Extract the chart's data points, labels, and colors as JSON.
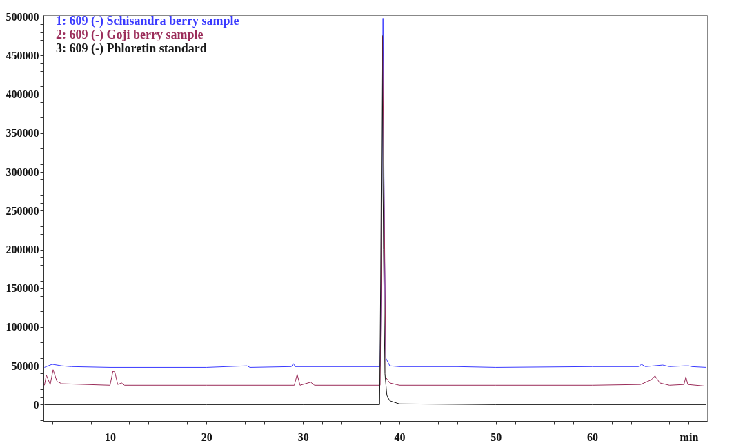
{
  "chart_data": {
    "type": "line",
    "legend": "top left",
    "grid": false,
    "xlim": [
      3.1,
      71.9
    ],
    "xticks": [
      {
        "value": 4,
        "label": null
      },
      {
        "value": 6,
        "label": null
      },
      {
        "value": 8,
        "label": null
      },
      10,
      {
        "value": 12,
        "label": null
      },
      {
        "value": 14,
        "label": null
      },
      {
        "value": 16,
        "label": null
      },
      {
        "value": 18,
        "label": null
      },
      20,
      {
        "value": 22,
        "label": null
      },
      {
        "value": 24,
        "label": null
      },
      {
        "value": 26,
        "label": null
      },
      {
        "value": 28,
        "label": null
      },
      30,
      {
        "value": 32,
        "label": null
      },
      {
        "value": 34,
        "label": null
      },
      {
        "value": 36,
        "label": null
      },
      {
        "value": 38,
        "label": null
      },
      40,
      {
        "value": 42,
        "label": null
      },
      {
        "value": 44,
        "label": null
      },
      {
        "value": 46,
        "label": null
      },
      {
        "value": 48,
        "label": null
      },
      50,
      {
        "value": 52,
        "label": null
      },
      {
        "value": 54,
        "label": null
      },
      {
        "value": 56,
        "label": null
      },
      {
        "value": 58,
        "label": null
      },
      60,
      {
        "value": 62,
        "label": null
      },
      {
        "value": 64,
        "label": null
      },
      {
        "value": 66,
        "label": null
      },
      {
        "value": 68,
        "label": null
      },
      {
        "value": 70,
        "label": "min"
      }
    ],
    "ylim": [
      -21000,
      502000
    ],
    "yticks": [
      {
        "value": -20000,
        "label": null
      },
      {
        "value": -10000,
        "label": null
      },
      0,
      {
        "value": 10000,
        "label": null
      },
      {
        "value": 20000,
        "label": null
      },
      {
        "value": 30000,
        "label": null
      },
      {
        "value": 40000,
        "label": null
      },
      50000,
      {
        "value": 60000,
        "label": null
      },
      {
        "value": 70000,
        "label": null
      },
      {
        "value": 80000,
        "label": null
      },
      {
        "value": 90000,
        "label": null
      },
      100000,
      {
        "value": 110000,
        "label": null
      },
      {
        "value": 120000,
        "label": null
      },
      {
        "value": 130000,
        "label": null
      },
      {
        "value": 140000,
        "label": null
      },
      150000,
      {
        "value": 160000,
        "label": null
      },
      {
        "value": 170000,
        "label": null
      },
      {
        "value": 180000,
        "label": null
      },
      {
        "value": 190000,
        "label": null
      },
      200000,
      {
        "value": 210000,
        "label": null
      },
      {
        "value": 220000,
        "label": null
      },
      {
        "value": 230000,
        "label": null
      },
      {
        "value": 240000,
        "label": null
      },
      250000,
      {
        "value": 260000,
        "label": null
      },
      {
        "value": 270000,
        "label": null
      },
      {
        "value": 280000,
        "label": null
      },
      {
        "value": 290000,
        "label": null
      },
      300000,
      {
        "value": 310000,
        "label": null
      },
      {
        "value": 320000,
        "label": null
      },
      {
        "value": 330000,
        "label": null
      },
      {
        "value": 340000,
        "label": null
      },
      350000,
      {
        "value": 360000,
        "label": null
      },
      {
        "value": 370000,
        "label": null
      },
      {
        "value": 380000,
        "label": null
      },
      {
        "value": 390000,
        "label": null
      },
      400000,
      {
        "value": 410000,
        "label": null
      },
      {
        "value": 420000,
        "label": null
      },
      {
        "value": 430000,
        "label": null
      },
      {
        "value": 440000,
        "label": null
      },
      450000,
      {
        "value": 460000,
        "label": null
      },
      {
        "value": 470000,
        "label": null
      },
      {
        "value": 480000,
        "label": null
      },
      {
        "value": 490000,
        "label": null
      },
      500000
    ],
    "series": [
      {
        "name": "1: 609 (-) Schisandra berry sample",
        "color": "#3a3aff",
        "x": [
          3.2,
          3.6,
          4,
          5,
          6,
          10,
          20,
          24.2,
          24.5,
          28.8,
          29,
          29.2,
          31,
          38,
          38.15,
          38.3,
          38.45,
          38.6,
          39,
          40,
          46,
          50,
          60,
          64.8,
          65.1,
          65.5,
          67.3,
          68,
          69.6,
          70,
          70.3,
          71.8
        ],
        "values": [
          48000,
          50000,
          52000,
          50000,
          49000,
          48000,
          48000,
          50000,
          48000,
          49000,
          53000,
          49000,
          49000,
          49000,
          200000,
          498000,
          200000,
          60000,
          50000,
          49000,
          49000,
          48000,
          49000,
          49000,
          52000,
          49000,
          51000,
          49000,
          50000,
          50000,
          49000,
          48000
        ]
      },
      {
        "name": "2: 609 (-) Goji berry sample",
        "color": "#9b2d5a",
        "x": [
          3.2,
          3.4,
          3.8,
          4.1,
          4.5,
          5,
          10,
          10.3,
          10.5,
          10.8,
          11.2,
          11.5,
          20,
          29.1,
          29.4,
          29.7,
          30.8,
          31.2,
          38,
          38.1,
          38.25,
          38.6,
          39,
          40,
          50,
          60,
          65,
          66.1,
          66.5,
          67,
          68,
          69.5,
          69.7,
          69.9,
          71.6
        ],
        "values": [
          25000,
          38000,
          26000,
          45000,
          30000,
          27000,
          25000,
          43000,
          42000,
          26000,
          28000,
          25000,
          25000,
          25000,
          39000,
          25000,
          29000,
          25000,
          25000,
          150000,
          475000,
          35000,
          28000,
          25000,
          25000,
          25000,
          26000,
          32000,
          37000,
          28000,
          25000,
          26000,
          36000,
          26000,
          24000
        ]
      },
      {
        "name": "3: 609 (-) Phloretin standard",
        "color": "#1a1a1a",
        "x": [
          3.2,
          10,
          20,
          30,
          37.95,
          38.05,
          38.2,
          38.35,
          38.5,
          38.7,
          39,
          40,
          50,
          60,
          71.8
        ],
        "values": [
          0,
          0,
          0,
          0,
          0,
          150000,
          477000,
          200000,
          40000,
          12000,
          5000,
          1000,
          0,
          0,
          0
        ]
      }
    ]
  }
}
